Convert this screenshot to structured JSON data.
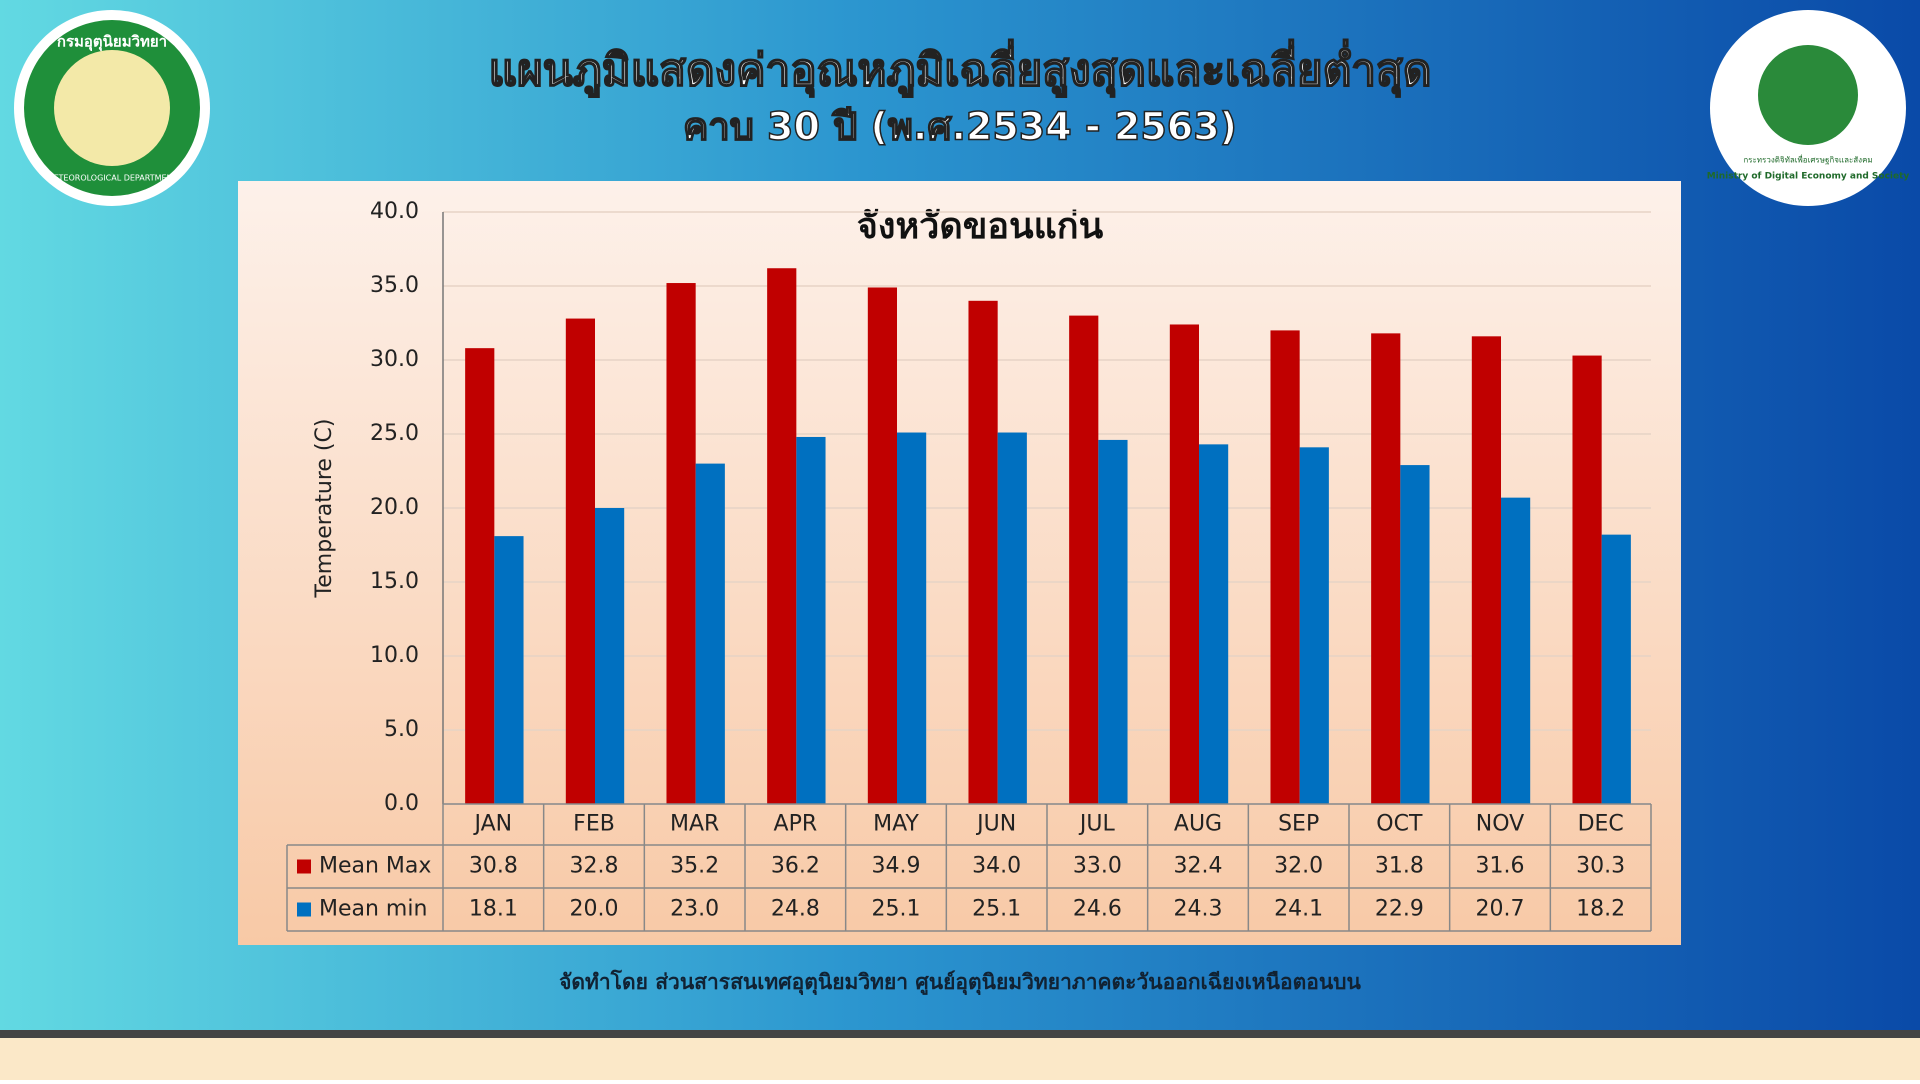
{
  "header": {
    "title": "แผนภูมิแสดงค่าอุณหภูมิเฉลี่ยสูงสุดและเฉลี่ยต่ำสุด",
    "subtitle": "คาบ 30 ปี (พ.ศ.2534 - 2563)"
  },
  "logos": {
    "left_top": "กรมอุตุนิยมวิทยา",
    "left_bottom": "METEOROLOGICAL DEPARTMENT",
    "right_thai": "กระทรวงดิจิทัลเพื่อเศรษฐกิจและสังคม",
    "right_english": "Ministry of Digital Economy and Society"
  },
  "chart_data": {
    "type": "bar",
    "title": "จังหวัดขอนแก่น",
    "y_label": "Temperature (C)",
    "categories": [
      "JAN",
      "FEB",
      "MAR",
      "APR",
      "MAY",
      "JUN",
      "JUL",
      "AUG",
      "SEP",
      "OCT",
      "NOV",
      "DEC"
    ],
    "series": [
      {
        "name": "Mean Max",
        "color": "#c00000",
        "values": [
          30.8,
          32.8,
          35.2,
          36.2,
          34.9,
          34.0,
          33.0,
          32.4,
          32.0,
          31.8,
          31.6,
          30.3
        ],
        "value_labels": [
          "30.8",
          "32.8",
          "35.2",
          "36.2",
          "34.9",
          "34.0",
          "33.0",
          "32.4",
          "32.0",
          "31.8",
          "31.6",
          "30.3"
        ]
      },
      {
        "name": "Mean min",
        "color": "#0070c0",
        "values": [
          18.1,
          20.0,
          23.0,
          24.8,
          25.1,
          25.1,
          24.6,
          24.3,
          24.1,
          22.9,
          20.7,
          18.2
        ],
        "value_labels": [
          "18.1",
          "20.0",
          "23.0",
          "24.8",
          "25.1",
          "25.1",
          "24.6",
          "24.3",
          "24.1",
          "22.9",
          "20.7",
          "18.2"
        ]
      }
    ],
    "ylim": [
      0,
      40
    ],
    "yticks": [
      {
        "value": 0,
        "label": "0.0"
      },
      {
        "value": 5,
        "label": "5.0"
      },
      {
        "value": 10,
        "label": "10.0"
      },
      {
        "value": 15,
        "label": "15.0"
      },
      {
        "value": 20,
        "label": "20.0"
      },
      {
        "value": 25,
        "label": "25.0"
      },
      {
        "value": 30,
        "label": "30.0"
      },
      {
        "value": 35,
        "label": "35.0"
      },
      {
        "value": 40,
        "label": "40.0"
      }
    ],
    "grid": true
  },
  "footer": "จัดทำโดย ส่วนสารสนเทศอุตุนิยมวิทยา ศูนย์อุตุนิยมวิทยาภาคตะวันออกเฉียงเหนือตอนบน"
}
